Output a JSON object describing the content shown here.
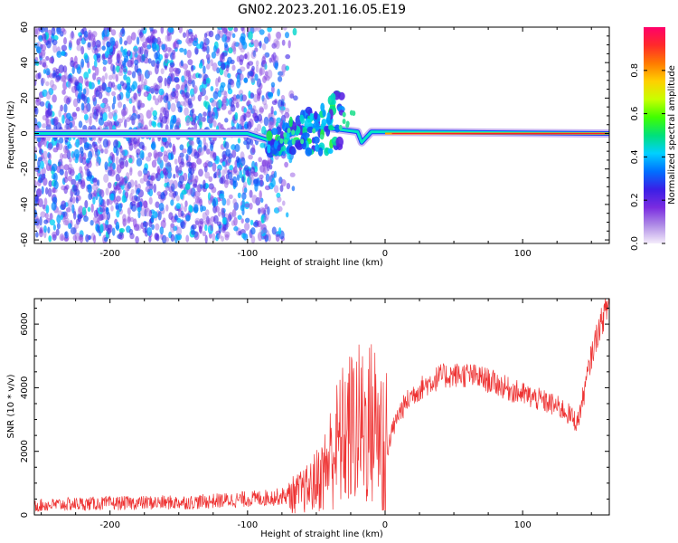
{
  "title": "GN02.2023.201.16.05.E19",
  "chart_data": [
    {
      "type": "heatmap",
      "title": "GN02.2023.201.16.05.E19",
      "xlabel": "Height of straight line (km)",
      "ylabel": "Frequency (Hz)",
      "xlim": [
        -255,
        163
      ],
      "ylim": [
        -62,
        60
      ],
      "x_ticks": [
        -200,
        -100,
        0,
        100
      ],
      "y_ticks": [
        -60,
        -40,
        -20,
        0,
        20,
        40,
        60
      ],
      "colorbar": {
        "label": "Normalized spectral amplitude",
        "range": [
          0,
          1
        ],
        "ticks": [
          0.0,
          0.2,
          0.4,
          0.6,
          0.8
        ],
        "colors": [
          "#f4ecfb",
          "#b08de6",
          "#7a2be0",
          "#3a1fe6",
          "#0070ff",
          "#00d0ff",
          "#00e07a",
          "#40ff00",
          "#c8ff00",
          "#ffd000",
          "#ff7a00",
          "#ff2a2a",
          "#ff006a"
        ]
      },
      "features": [
        {
          "name": "noise",
          "x_range": [
            -255,
            -75
          ],
          "y_range": [
            -60,
            60
          ],
          "amplitude": [
            0.1,
            0.45
          ]
        },
        {
          "name": "carrier_line",
          "points": [
            [
              -255,
              0
            ],
            [
              -100,
              0
            ],
            [
              -80,
              -5
            ],
            [
              -60,
              3
            ],
            [
              -40,
              3
            ],
            [
              -20,
              1
            ],
            [
              -17,
              -5
            ],
            [
              -10,
              1
            ],
            [
              163,
              0
            ]
          ],
          "amplitude": [
            0.5,
            0.9
          ]
        }
      ]
    },
    {
      "type": "line",
      "xlabel": "Height of straight line (km)",
      "ylabel": "SNR (10 * v/v)",
      "xlim": [
        -255,
        163
      ],
      "ylim": [
        0,
        6800
      ],
      "x_ticks": [
        -200,
        -100,
        0,
        100
      ],
      "y_ticks": [
        0,
        2000,
        4000,
        6000
      ],
      "color": "#ee3333",
      "series": [
        {
          "x": [
            -255,
            -220,
            -180,
            -140,
            -100,
            -80,
            -65,
            -55,
            -45,
            -38,
            -30,
            -22,
            -15,
            -8,
            -3,
            0,
            0.5,
            1,
            5,
            10,
            20,
            30,
            40,
            50,
            60,
            70,
            80,
            90,
            100,
            110,
            120,
            130,
            140,
            145,
            150,
            155,
            163
          ],
          "y": [
            300,
            350,
            380,
            400,
            500,
            560,
            650,
            850,
            1300,
            2000,
            2500,
            2800,
            2800,
            2900,
            2700,
            200,
            2500,
            1950,
            2600,
            3200,
            3800,
            4100,
            4350,
            4400,
            4400,
            4300,
            4150,
            3950,
            3800,
            3650,
            3500,
            3300,
            2900,
            3900,
            5000,
            5800,
            6700
          ]
        }
      ]
    }
  ]
}
